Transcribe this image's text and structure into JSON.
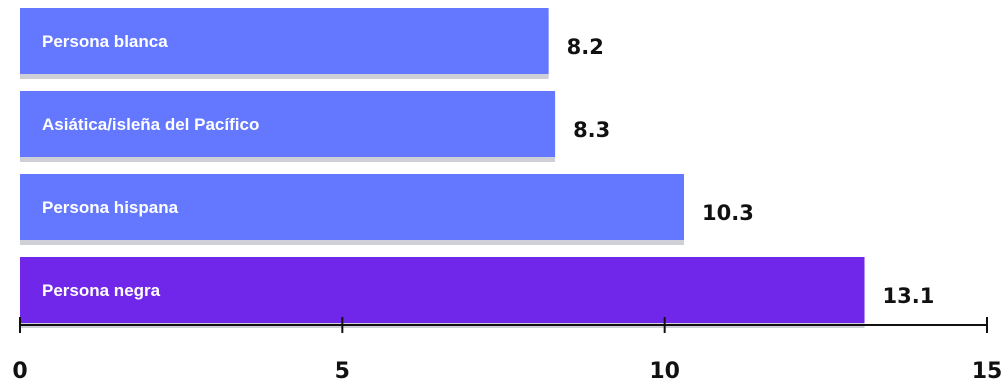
{
  "chart_data": {
    "type": "bar",
    "orientation": "horizontal",
    "title": "",
    "xlabel": "",
    "ylabel": "",
    "xlim": [
      0,
      15
    ],
    "grid": false,
    "legend": "none",
    "categories": [
      "Persona blanca",
      "Asiática/isleña del Pacífico",
      "Persona hispana",
      "Persona negra"
    ],
    "values": [
      8.2,
      8.3,
      10.3,
      13.1
    ],
    "value_labels": [
      "8.2",
      "8.3",
      "10.3",
      "13.1"
    ],
    "x_ticks": [
      0,
      5,
      10,
      15
    ],
    "x_tick_labels": [
      "0",
      "5",
      "10",
      "15"
    ],
    "colors": {
      "default_bar": "#6378ff",
      "highlight_bar": "#7027ea",
      "bar_shadow": "#cfcfd8",
      "axis": "#111111",
      "text": "#111111"
    },
    "highlight_category": "Persona negra"
  }
}
